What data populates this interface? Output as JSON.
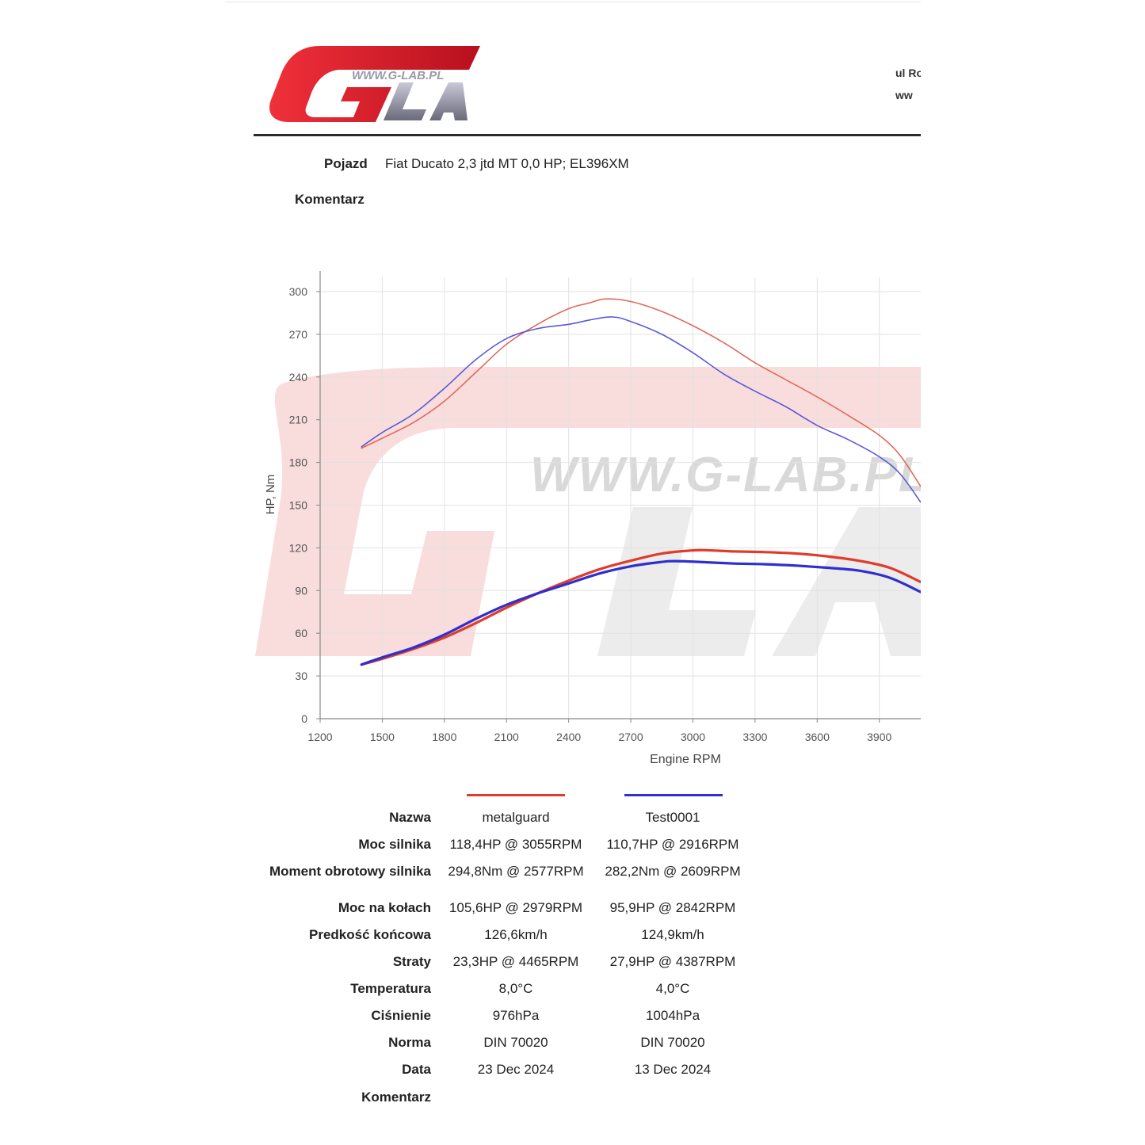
{
  "header": {
    "logo_url_text": "WWW.G-LAB.PL",
    "address_line1": "ul Ro",
    "address_line2": "ww"
  },
  "vehicle": {
    "label": "Pojazd",
    "value": "Fiat Ducato 2,3 jtd MT 0,0 HP; EL396XM"
  },
  "comment_top": {
    "label": "Komentarz"
  },
  "watermark_text": "WWW.G-LAB.PL",
  "colors": {
    "red": "#e03c2c",
    "blue": "#2f2fd0",
    "logo_red": "#d8172b"
  },
  "chart_data": {
    "type": "line",
    "xlabel": "Engine RPM",
    "ylabel": "HP, Nm",
    "xlim": [
      1200,
      4100
    ],
    "ylim": [
      0,
      310
    ],
    "x_ticks": [
      1200,
      1500,
      1800,
      2100,
      2400,
      2700,
      3000,
      3300,
      3600,
      3900
    ],
    "y_ticks": [
      0,
      30,
      60,
      90,
      120,
      150,
      180,
      210,
      240,
      270,
      300
    ],
    "grid": true,
    "series": [
      {
        "name": "metalguard",
        "quantity": "torque",
        "color": "#e06a5a",
        "x": [
          1400,
          1500,
          1650,
          1800,
          1950,
          2100,
          2250,
          2400,
          2500,
          2577,
          2700,
          2850,
          3000,
          3150,
          3300,
          3450,
          3600,
          3750,
          3900,
          4000,
          4100
        ],
        "y": [
          190,
          197,
          208,
          223,
          243,
          263,
          277,
          288,
          292,
          294.8,
          293,
          286,
          276,
          264,
          250,
          238,
          226,
          213,
          199,
          185,
          163
        ]
      },
      {
        "name": "Test0001",
        "quantity": "torque",
        "color": "#5a5ad8",
        "x": [
          1400,
          1500,
          1650,
          1800,
          1950,
          2100,
          2250,
          2400,
          2500,
          2609,
          2700,
          2850,
          3000,
          3150,
          3300,
          3450,
          3600,
          3750,
          3900,
          4000,
          4100
        ],
        "y": [
          191,
          201,
          214,
          232,
          252,
          267,
          274,
          277,
          280,
          282.2,
          279,
          270,
          257,
          242,
          230,
          219,
          206,
          196,
          184,
          172,
          152
        ]
      },
      {
        "name": "metalguard",
        "quantity": "power",
        "color": "#e03c2c",
        "x": [
          1400,
          1500,
          1650,
          1800,
          1950,
          2100,
          2250,
          2400,
          2550,
          2700,
          2850,
          2979,
          3055,
          3200,
          3350,
          3500,
          3650,
          3800,
          3950,
          4100
        ],
        "y": [
          38,
          42,
          49,
          57,
          67,
          78,
          88,
          97,
          105,
          111,
          116,
          118,
          118.4,
          117.5,
          117,
          116,
          114,
          111,
          106,
          96
        ]
      },
      {
        "name": "Test0001",
        "quantity": "power",
        "color": "#2f2fd0",
        "x": [
          1400,
          1500,
          1650,
          1800,
          1950,
          2100,
          2250,
          2400,
          2550,
          2700,
          2842,
          2916,
          3050,
          3200,
          3350,
          3500,
          3650,
          3800,
          3950,
          4100
        ],
        "y": [
          38,
          43,
          50,
          59,
          70,
          80,
          88,
          95,
          102,
          107,
          110,
          110.7,
          110,
          109,
          108.5,
          107.5,
          106,
          104,
          99,
          89
        ]
      }
    ]
  },
  "table": {
    "labels": [
      "Nazwa",
      "Moc silnika",
      "Moment obrotowy silnika",
      "Moc na kołach",
      "Predkość końcowa",
      "Straty",
      "Temperatura",
      "Ciśnienie",
      "Norma",
      "Data",
      "Komentarz"
    ],
    "runs": [
      {
        "color": "#e03c2c",
        "values": [
          "metalguard",
          "118,4HP @ 3055RPM",
          "294,8Nm @ 2577RPM",
          "105,6HP @ 2979RPM",
          "126,6km/h",
          "23,3HP @ 4465RPM",
          "8,0°C",
          "976hPa",
          "DIN 70020",
          "23 Dec 2024",
          ""
        ]
      },
      {
        "color": "#2f2fd0",
        "values": [
          "Test0001",
          "110,7HP @ 2916RPM",
          "282,2Nm @ 2609RPM",
          "95,9HP @ 2842RPM",
          "124,9km/h",
          "27,9HP @ 4387RPM",
          "4,0°C",
          "1004hPa",
          "DIN 70020",
          "13 Dec 2024",
          ""
        ]
      }
    ]
  }
}
